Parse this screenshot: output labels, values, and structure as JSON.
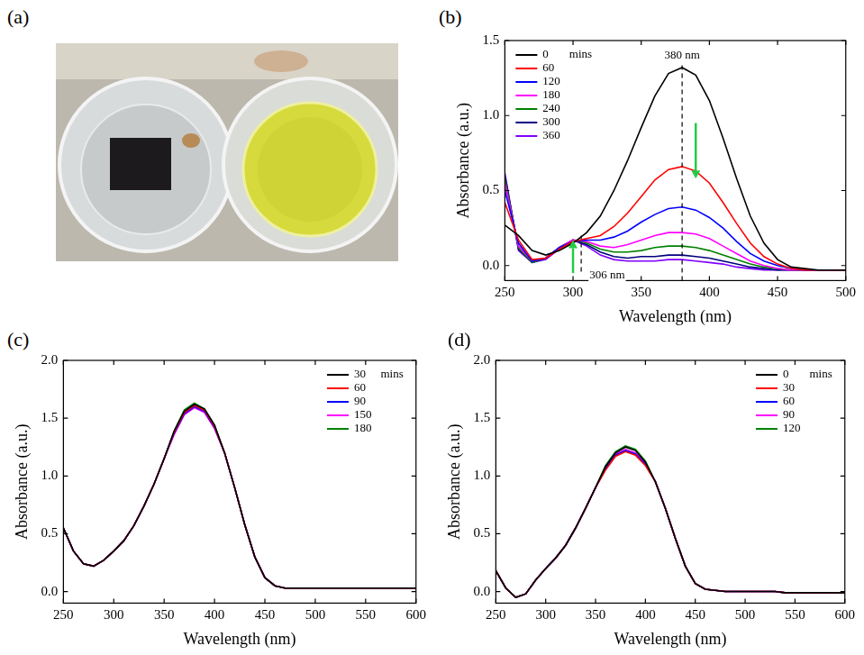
{
  "photo": {
    "panel": "(a)"
  },
  "chart_data": [
    {
      "panel": "(b)",
      "type": "line",
      "xlabel": "Wavelength (nm)",
      "ylabel": "Absorbance (a.u.)",
      "x": [
        250,
        260,
        270,
        280,
        290,
        300,
        310,
        320,
        330,
        340,
        350,
        360,
        370,
        380,
        390,
        400,
        410,
        420,
        430,
        440,
        450,
        460,
        470,
        480,
        490,
        500
      ],
      "xlim": [
        250,
        500
      ],
      "xticks": [
        250,
        300,
        350,
        400,
        450,
        500
      ],
      "ylim": [
        -0.1,
        1.5
      ],
      "yticks": [
        {
          "value": 0,
          "label": "0.0"
        },
        {
          "value": 0.5,
          "label": "0.5"
        },
        {
          "value": 1,
          "label": "1.0"
        },
        {
          "value": 1.5,
          "label": "1.5"
        }
      ],
      "grid": false,
      "legend": "top-left",
      "legend_title": "mins",
      "series": [
        {
          "name": "0",
          "color": "#000000",
          "values": [
            0.27,
            0.2,
            0.1,
            0.07,
            0.1,
            0.15,
            0.22,
            0.33,
            0.5,
            0.7,
            0.92,
            1.13,
            1.28,
            1.32,
            1.27,
            1.1,
            0.85,
            0.58,
            0.33,
            0.15,
            0.04,
            -0.01,
            -0.02,
            -0.03,
            -0.03,
            -0.03
          ]
        },
        {
          "name": "60",
          "color": "#ff0000",
          "values": [
            0.42,
            0.17,
            0.04,
            0.05,
            0.11,
            0.16,
            0.18,
            0.2,
            0.26,
            0.35,
            0.46,
            0.57,
            0.64,
            0.66,
            0.63,
            0.55,
            0.42,
            0.28,
            0.15,
            0.06,
            0.01,
            -0.02,
            -0.03,
            -0.03,
            -0.03,
            -0.03
          ]
        },
        {
          "name": "120",
          "color": "#0000ff",
          "values": [
            0.5,
            0.15,
            0.03,
            0.05,
            0.12,
            0.16,
            0.17,
            0.17,
            0.19,
            0.23,
            0.29,
            0.34,
            0.38,
            0.39,
            0.37,
            0.32,
            0.25,
            0.16,
            0.08,
            0.03,
            0,
            -0.02,
            -0.03,
            -0.03,
            -0.03,
            -0.03
          ]
        },
        {
          "name": "180",
          "color": "#ff00ff",
          "values": [
            0.55,
            0.13,
            0.03,
            0.05,
            0.12,
            0.17,
            0.16,
            0.13,
            0.12,
            0.14,
            0.17,
            0.2,
            0.22,
            0.22,
            0.21,
            0.18,
            0.13,
            0.08,
            0.03,
            0,
            -0.02,
            -0.03,
            -0.03,
            -0.03,
            -0.03,
            -0.03
          ]
        },
        {
          "name": "240",
          "color": "#008000",
          "values": [
            0.58,
            0.12,
            0.02,
            0.05,
            0.12,
            0.17,
            0.15,
            0.11,
            0.09,
            0.09,
            0.1,
            0.12,
            0.13,
            0.13,
            0.12,
            0.1,
            0.07,
            0.04,
            0.01,
            -0.01,
            -0.02,
            -0.03,
            -0.03,
            -0.03,
            -0.03,
            -0.03
          ]
        },
        {
          "name": "300",
          "color": "#000080",
          "values": [
            0.6,
            0.11,
            0.02,
            0.05,
            0.12,
            0.17,
            0.14,
            0.09,
            0.06,
            0.05,
            0.06,
            0.06,
            0.07,
            0.07,
            0.06,
            0.05,
            0.03,
            0.01,
            -0.01,
            -0.02,
            -0.03,
            -0.03,
            -0.03,
            -0.03,
            -0.03,
            -0.03
          ]
        },
        {
          "name": "360",
          "color": "#8000ff",
          "values": [
            0.62,
            0.1,
            0.02,
            0.04,
            0.11,
            0.17,
            0.13,
            0.07,
            0.04,
            0.03,
            0.03,
            0.03,
            0.04,
            0.04,
            0.03,
            0.02,
            0.01,
            -0.01,
            -0.02,
            -0.03,
            -0.03,
            -0.03,
            -0.03,
            -0.03,
            -0.03,
            -0.03
          ]
        }
      ],
      "annotations": [
        {
          "text": "380 nm",
          "x": 380,
          "y": 1.4
        },
        {
          "text": "306 nm",
          "x": 312,
          "y": -0.065
        }
      ],
      "vlines": [
        {
          "x": 380,
          "y_from": -0.1,
          "y_to": 1.38
        },
        {
          "x": 306,
          "y_from": -0.04,
          "y_to": 0.2
        }
      ],
      "arrows": [
        {
          "x": 390,
          "y_from": 0.95,
          "y_to": 0.58,
          "color": "#22cc44"
        },
        {
          "x": 300,
          "y_from": -0.05,
          "y_to": 0.17,
          "color": "#22cc44"
        }
      ]
    },
    {
      "panel": "(c)",
      "type": "line",
      "xlabel": "Wavelength (nm)",
      "ylabel": "Absorbance (a.u.)",
      "x": [
        250,
        260,
        270,
        280,
        290,
        300,
        310,
        320,
        330,
        340,
        350,
        360,
        370,
        380,
        390,
        400,
        410,
        420,
        430,
        440,
        450,
        460,
        470,
        480,
        490,
        500,
        510,
        520,
        530,
        540,
        550,
        560,
        570,
        580,
        590,
        600
      ],
      "xlim": [
        250,
        600
      ],
      "xticks": [
        250,
        300,
        350,
        400,
        450,
        500,
        550,
        600
      ],
      "ylim": [
        -0.1,
        2.0
      ],
      "yticks": [
        {
          "value": 0,
          "label": "0.0"
        },
        {
          "value": 0.5,
          "label": "0.5"
        },
        {
          "value": 1,
          "label": "1.0"
        },
        {
          "value": 1.5,
          "label": "1.5"
        },
        {
          "value": 2,
          "label": "2.0"
        }
      ],
      "grid": false,
      "legend": "top-right",
      "legend_title": "mins",
      "series": [
        {
          "name": "30",
          "color": "#000000",
          "values": [
            0.55,
            0.35,
            0.24,
            0.22,
            0.27,
            0.35,
            0.44,
            0.57,
            0.74,
            0.93,
            1.15,
            1.39,
            1.56,
            1.62,
            1.58,
            1.44,
            1.2,
            0.9,
            0.58,
            0.3,
            0.12,
            0.05,
            0.03,
            0.03,
            0.03,
            0.03,
            0.03,
            0.03,
            0.03,
            0.03,
            0.03,
            0.03,
            0.03,
            0.03,
            0.03,
            0.03
          ]
        },
        {
          "name": "60",
          "color": "#ff0000",
          "values": [
            0.55,
            0.35,
            0.24,
            0.22,
            0.27,
            0.35,
            0.44,
            0.57,
            0.74,
            0.93,
            1.15,
            1.38,
            1.55,
            1.61,
            1.57,
            1.43,
            1.2,
            0.9,
            0.58,
            0.3,
            0.12,
            0.05,
            0.03,
            0.03,
            0.03,
            0.03,
            0.03,
            0.03,
            0.03,
            0.03,
            0.03,
            0.03,
            0.03,
            0.03,
            0.03,
            0.03
          ]
        },
        {
          "name": "90",
          "color": "#0000ff",
          "values": [
            0.55,
            0.35,
            0.24,
            0.22,
            0.27,
            0.35,
            0.44,
            0.57,
            0.74,
            0.93,
            1.15,
            1.37,
            1.54,
            1.6,
            1.56,
            1.42,
            1.2,
            0.9,
            0.58,
            0.3,
            0.12,
            0.05,
            0.03,
            0.03,
            0.03,
            0.03,
            0.03,
            0.03,
            0.03,
            0.03,
            0.03,
            0.03,
            0.03,
            0.03,
            0.03,
            0.03
          ]
        },
        {
          "name": "150",
          "color": "#ff00ff",
          "values": [
            0.55,
            0.35,
            0.24,
            0.22,
            0.27,
            0.35,
            0.44,
            0.57,
            0.74,
            0.93,
            1.15,
            1.36,
            1.53,
            1.59,
            1.55,
            1.41,
            1.2,
            0.9,
            0.58,
            0.3,
            0.12,
            0.05,
            0.03,
            0.03,
            0.03,
            0.03,
            0.03,
            0.03,
            0.03,
            0.03,
            0.03,
            0.03,
            0.03,
            0.03,
            0.03,
            0.03
          ]
        },
        {
          "name": "180",
          "color": "#008000",
          "values": [
            0.55,
            0.35,
            0.24,
            0.22,
            0.27,
            0.35,
            0.44,
            0.57,
            0.74,
            0.93,
            1.15,
            1.39,
            1.57,
            1.63,
            1.58,
            1.44,
            1.2,
            0.9,
            0.58,
            0.3,
            0.12,
            0.05,
            0.03,
            0.03,
            0.03,
            0.03,
            0.03,
            0.03,
            0.03,
            0.03,
            0.03,
            0.03,
            0.03,
            0.03,
            0.03,
            0.03
          ]
        }
      ]
    },
    {
      "panel": "(d)",
      "type": "line",
      "xlabel": "Wavelength (nm)",
      "ylabel": "Absorbance (a.u.)",
      "x": [
        250,
        260,
        270,
        280,
        290,
        300,
        310,
        320,
        330,
        340,
        350,
        360,
        370,
        380,
        390,
        400,
        410,
        420,
        430,
        440,
        450,
        460,
        470,
        480,
        490,
        500,
        510,
        520,
        530,
        540,
        550,
        560,
        570,
        580,
        590,
        600
      ],
      "xlim": [
        250,
        600
      ],
      "xticks": [
        250,
        300,
        350,
        400,
        450,
        500,
        550,
        600
      ],
      "ylim": [
        -0.1,
        2.0
      ],
      "yticks": [
        {
          "value": 0,
          "label": "0.0"
        },
        {
          "value": 0.5,
          "label": "0.5"
        },
        {
          "value": 1,
          "label": "1.0"
        },
        {
          "value": 1.5,
          "label": "1.5"
        },
        {
          "value": 2,
          "label": "2.0"
        }
      ],
      "grid": false,
      "legend": "top-right",
      "legend_title": "mins",
      "series": [
        {
          "name": "0",
          "color": "#000000",
          "values": [
            0.18,
            0.03,
            -0.05,
            -0.02,
            0.1,
            0.2,
            0.29,
            0.4,
            0.55,
            0.72,
            0.9,
            1.08,
            1.2,
            1.25,
            1.22,
            1.12,
            0.95,
            0.72,
            0.46,
            0.22,
            0.07,
            0.02,
            0.01,
            0,
            0,
            0,
            0,
            0,
            0,
            -0.01,
            -0.01,
            -0.01,
            -0.01,
            -0.01,
            -0.01,
            -0.01
          ]
        },
        {
          "name": "30",
          "color": "#ff0000",
          "values": [
            0.18,
            0.03,
            -0.05,
            -0.02,
            0.1,
            0.2,
            0.29,
            0.4,
            0.55,
            0.72,
            0.9,
            1.05,
            1.17,
            1.21,
            1.18,
            1.09,
            0.95,
            0.72,
            0.46,
            0.22,
            0.07,
            0.02,
            0.01,
            0,
            0,
            0,
            0,
            0,
            0,
            -0.01,
            -0.01,
            -0.01,
            -0.01,
            -0.01,
            -0.01,
            -0.01
          ]
        },
        {
          "name": "60",
          "color": "#0000ff",
          "values": [
            0.18,
            0.03,
            -0.05,
            -0.02,
            0.1,
            0.2,
            0.29,
            0.4,
            0.55,
            0.72,
            0.9,
            1.06,
            1.18,
            1.22,
            1.19,
            1.1,
            0.95,
            0.72,
            0.46,
            0.22,
            0.07,
            0.02,
            0.01,
            0,
            0,
            0,
            0,
            0,
            0,
            -0.01,
            -0.01,
            -0.01,
            -0.01,
            -0.01,
            -0.01,
            -0.01
          ]
        },
        {
          "name": "90",
          "color": "#ff00ff",
          "values": [
            0.18,
            0.03,
            -0.05,
            -0.02,
            0.1,
            0.2,
            0.29,
            0.4,
            0.55,
            0.72,
            0.9,
            1.07,
            1.19,
            1.23,
            1.2,
            1.11,
            0.95,
            0.72,
            0.46,
            0.22,
            0.07,
            0.02,
            0.01,
            0,
            0,
            0,
            0,
            0,
            0,
            -0.01,
            -0.01,
            -0.01,
            -0.01,
            -0.01,
            -0.01,
            -0.01
          ]
        },
        {
          "name": "120",
          "color": "#008000",
          "values": [
            0.18,
            0.03,
            -0.05,
            -0.02,
            0.1,
            0.2,
            0.29,
            0.4,
            0.55,
            0.72,
            0.9,
            1.09,
            1.21,
            1.26,
            1.23,
            1.13,
            0.95,
            0.72,
            0.46,
            0.22,
            0.07,
            0.02,
            0.01,
            0,
            0,
            0,
            0,
            0,
            0,
            -0.01,
            -0.01,
            -0.01,
            -0.01,
            -0.01,
            -0.01,
            -0.01
          ]
        }
      ]
    }
  ]
}
